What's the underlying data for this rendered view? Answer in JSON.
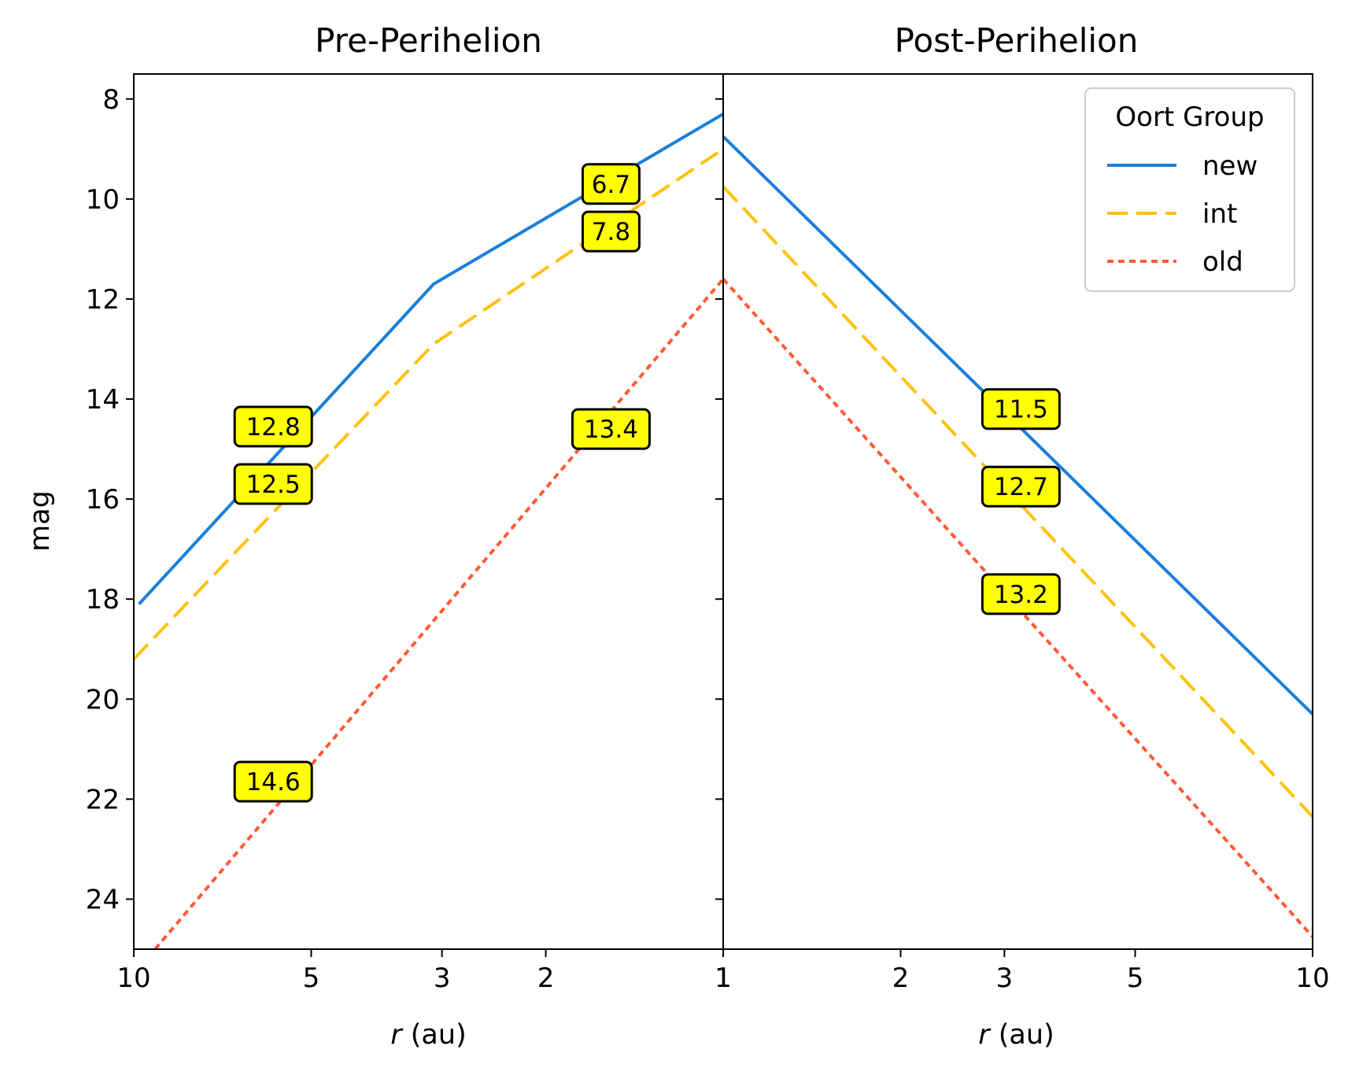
{
  "chart_data": {
    "type": "line",
    "ylabel": "mag",
    "y_inverted": true,
    "ylim": [
      25.0,
      7.5
    ],
    "yticks": [
      8,
      10,
      12,
      14,
      16,
      18,
      20,
      22,
      24
    ],
    "legend": {
      "title": "Oort Group",
      "placement": "top-right of right panel",
      "entries": [
        {
          "name": "new",
          "color": "#1a7fdb",
          "style": "solid"
        },
        {
          "name": "int",
          "color": "#ffc20e",
          "style": "dashed"
        },
        {
          "name": "old",
          "color": "#ff5a36",
          "style": "dotted"
        }
      ]
    },
    "panels": [
      {
        "title": "Pre-Perihelion",
        "xlabel_italic": "r",
        "xlabel_rest": " (au)",
        "x_scale": "log",
        "x_reversed": true,
        "xlim": [
          10,
          1
        ],
        "xticks": [
          10,
          5,
          3,
          2,
          1
        ],
        "series": [
          {
            "name": "new",
            "points": [
              [
                9.8,
                18.1
              ],
              [
                3.1,
                11.7
              ],
              [
                1.0,
                8.3
              ]
            ]
          },
          {
            "name": "int",
            "points": [
              [
                10.0,
                19.2
              ],
              [
                3.1,
                12.9
              ],
              [
                1.0,
                9.0
              ]
            ]
          },
          {
            "name": "old",
            "points": [
              [
                9.2,
                25.0
              ],
              [
                1.0,
                11.6
              ]
            ]
          }
        ],
        "annotations": [
          {
            "text": "12.8",
            "x": 5.8,
            "y": 14.55
          },
          {
            "text": "12.5",
            "x": 5.8,
            "y": 15.7
          },
          {
            "text": "14.6",
            "x": 5.8,
            "y": 21.65
          },
          {
            "text": "6.7",
            "x": 1.55,
            "y": 9.7
          },
          {
            "text": "7.8",
            "x": 1.55,
            "y": 10.65
          },
          {
            "text": "13.4",
            "x": 1.55,
            "y": 14.6
          }
        ]
      },
      {
        "title": "Post-Perihelion",
        "xlabel_italic": "r",
        "xlabel_rest": " (au)",
        "x_scale": "log",
        "x_reversed": false,
        "xlim": [
          1,
          10
        ],
        "xticks": [
          1,
          2,
          3,
          5,
          10
        ],
        "series": [
          {
            "name": "new",
            "points": [
              [
                1.0,
                8.75
              ],
              [
                10.0,
                20.3
              ]
            ]
          },
          {
            "name": "int",
            "points": [
              [
                1.0,
                9.75
              ],
              [
                10.0,
                22.35
              ]
            ]
          },
          {
            "name": "old",
            "points": [
              [
                1.0,
                11.6
              ],
              [
                10.0,
                24.75
              ]
            ]
          }
        ],
        "annotations": [
          {
            "text": "11.5",
            "x": 3.2,
            "y": 14.2
          },
          {
            "text": "12.7",
            "x": 3.2,
            "y": 15.75
          },
          {
            "text": "13.2",
            "x": 3.2,
            "y": 17.9
          }
        ]
      }
    ]
  }
}
